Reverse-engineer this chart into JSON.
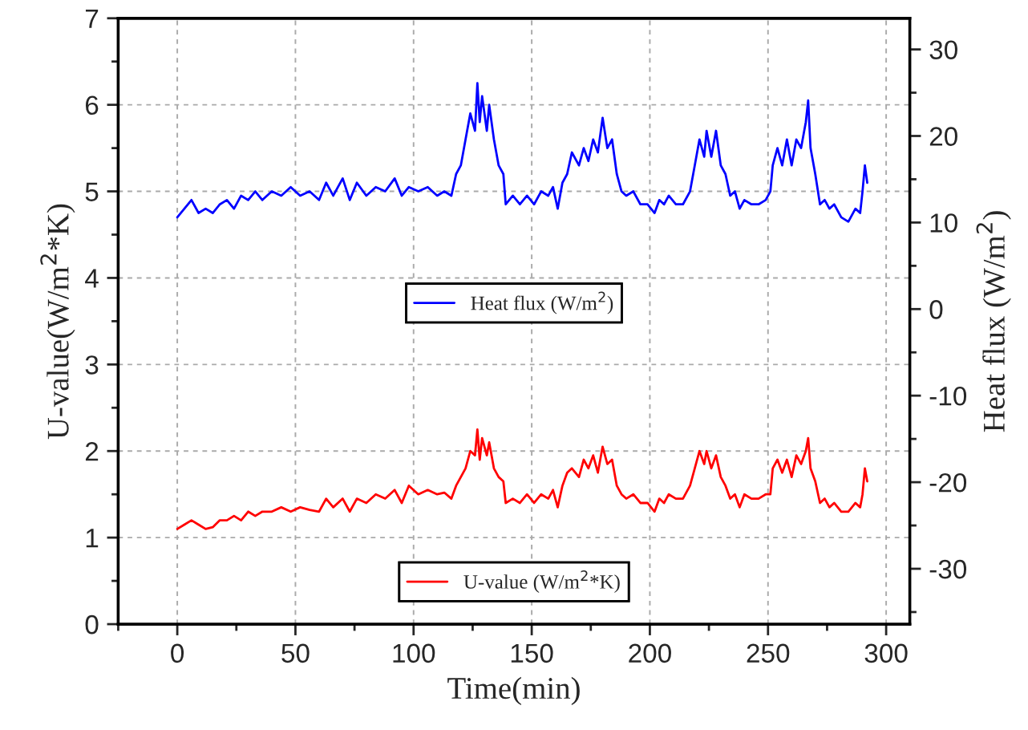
{
  "chart_data": {
    "type": "line",
    "xlabel": "Time(min)",
    "ylabel": "U-value(W/m$^{2}$*K)",
    "y2label": "Heat flux (W/m$^{2}$)",
    "x": [
      0,
      3,
      6,
      9,
      12,
      15,
      18,
      21,
      24,
      27,
      30,
      33,
      36,
      40,
      44,
      48,
      52,
      56,
      60,
      63,
      66,
      70,
      73,
      76,
      80,
      84,
      88,
      92,
      95,
      98,
      102,
      106,
      110,
      113,
      116,
      118,
      120,
      122,
      124,
      126,
      127,
      128,
      129,
      131,
      132,
      134,
      136,
      138,
      139,
      142,
      145,
      148,
      151,
      154,
      157,
      159,
      161,
      163,
      165,
      167,
      170,
      172,
      174,
      176,
      178,
      180,
      182,
      184,
      186,
      188,
      190,
      193,
      196,
      199,
      202,
      204,
      206,
      208,
      211,
      214,
      217,
      219,
      221,
      223,
      224,
      226,
      228,
      230,
      232,
      234,
      236,
      238,
      240,
      243,
      246,
      249,
      251,
      252,
      254,
      256,
      258,
      260,
      262,
      264,
      266,
      267,
      268,
      270,
      272,
      274,
      276,
      278,
      281,
      284,
      287,
      289,
      290,
      291,
      292
    ],
    "series": [
      {
        "name": "Heat flux (W/m$^{2}$)",
        "color": "#0000ff",
        "axis": "y2",
        "values": [
          10.6,
          11.6,
          12.6,
          11.1,
          11.6,
          11.1,
          12.1,
          12.6,
          11.6,
          13.1,
          12.6,
          13.6,
          12.6,
          13.6,
          13.1,
          14.1,
          13.1,
          13.6,
          12.6,
          14.6,
          13.1,
          15.1,
          12.6,
          14.6,
          13.1,
          14.1,
          13.6,
          15.1,
          13.1,
          14.1,
          13.6,
          14.1,
          13.1,
          13.6,
          13.1,
          15.6,
          16.6,
          19.6,
          22.6,
          20.6,
          26.1,
          21.6,
          24.6,
          20.6,
          23.6,
          19.6,
          16.6,
          15.6,
          12.1,
          13.1,
          12.1,
          13.1,
          12.1,
          13.6,
          13.1,
          14.1,
          11.6,
          14.6,
          15.6,
          18.1,
          16.6,
          18.6,
          17.1,
          19.6,
          18.1,
          22.1,
          18.6,
          19.6,
          15.6,
          13.6,
          13.1,
          13.6,
          12.1,
          12.1,
          11.1,
          12.6,
          12.1,
          13.1,
          12.1,
          12.1,
          13.6,
          16.6,
          19.6,
          17.6,
          20.6,
          17.6,
          20.6,
          16.6,
          15.6,
          13.1,
          13.6,
          11.6,
          12.6,
          12.1,
          12.1,
          12.6,
          13.6,
          16.6,
          18.6,
          16.6,
          19.6,
          16.6,
          19.6,
          18.6,
          21.6,
          24.1,
          18.6,
          15.6,
          12.1,
          12.6,
          11.6,
          12.1,
          10.6,
          10.1,
          11.6,
          11.1,
          13.6,
          16.6,
          14.6
        ]
      },
      {
        "name": "U-value (W/m$^{2}$*K)",
        "color": "#ff0000",
        "axis": "y",
        "values": [
          1.1,
          1.15,
          1.2,
          1.15,
          1.1,
          1.12,
          1.2,
          1.2,
          1.25,
          1.2,
          1.3,
          1.25,
          1.3,
          1.3,
          1.35,
          1.3,
          1.35,
          1.32,
          1.3,
          1.45,
          1.35,
          1.45,
          1.3,
          1.45,
          1.4,
          1.5,
          1.45,
          1.55,
          1.4,
          1.6,
          1.5,
          1.55,
          1.5,
          1.52,
          1.45,
          1.6,
          1.7,
          1.8,
          2.0,
          1.95,
          2.25,
          1.9,
          2.15,
          1.95,
          2.1,
          1.8,
          1.7,
          1.65,
          1.4,
          1.45,
          1.4,
          1.5,
          1.4,
          1.5,
          1.45,
          1.55,
          1.35,
          1.6,
          1.75,
          1.8,
          1.7,
          1.9,
          1.8,
          1.95,
          1.75,
          2.05,
          1.85,
          1.9,
          1.6,
          1.5,
          1.45,
          1.5,
          1.4,
          1.4,
          1.3,
          1.45,
          1.4,
          1.5,
          1.45,
          1.45,
          1.6,
          1.8,
          2.0,
          1.85,
          2.0,
          1.8,
          1.95,
          1.7,
          1.6,
          1.45,
          1.5,
          1.35,
          1.5,
          1.45,
          1.45,
          1.5,
          1.5,
          1.8,
          1.9,
          1.75,
          1.9,
          1.7,
          1.95,
          1.85,
          2.0,
          2.15,
          1.8,
          1.65,
          1.4,
          1.45,
          1.35,
          1.4,
          1.3,
          1.3,
          1.4,
          1.35,
          1.5,
          1.8,
          1.65
        ]
      }
    ],
    "xlim": [
      -25,
      310
    ],
    "xticks": [
      0,
      50,
      100,
      150,
      200,
      250,
      300
    ],
    "ylim": [
      0,
      7
    ],
    "yticks": [
      0,
      1,
      2,
      3,
      4,
      5,
      6,
      7
    ],
    "y2lim": [
      -36.4,
      33.6
    ],
    "y2ticks": [
      -30,
      -20,
      -10,
      0,
      10,
      20,
      30
    ],
    "grid": true,
    "legend": "center",
    "line_style": "solid",
    "marker": "none"
  }
}
